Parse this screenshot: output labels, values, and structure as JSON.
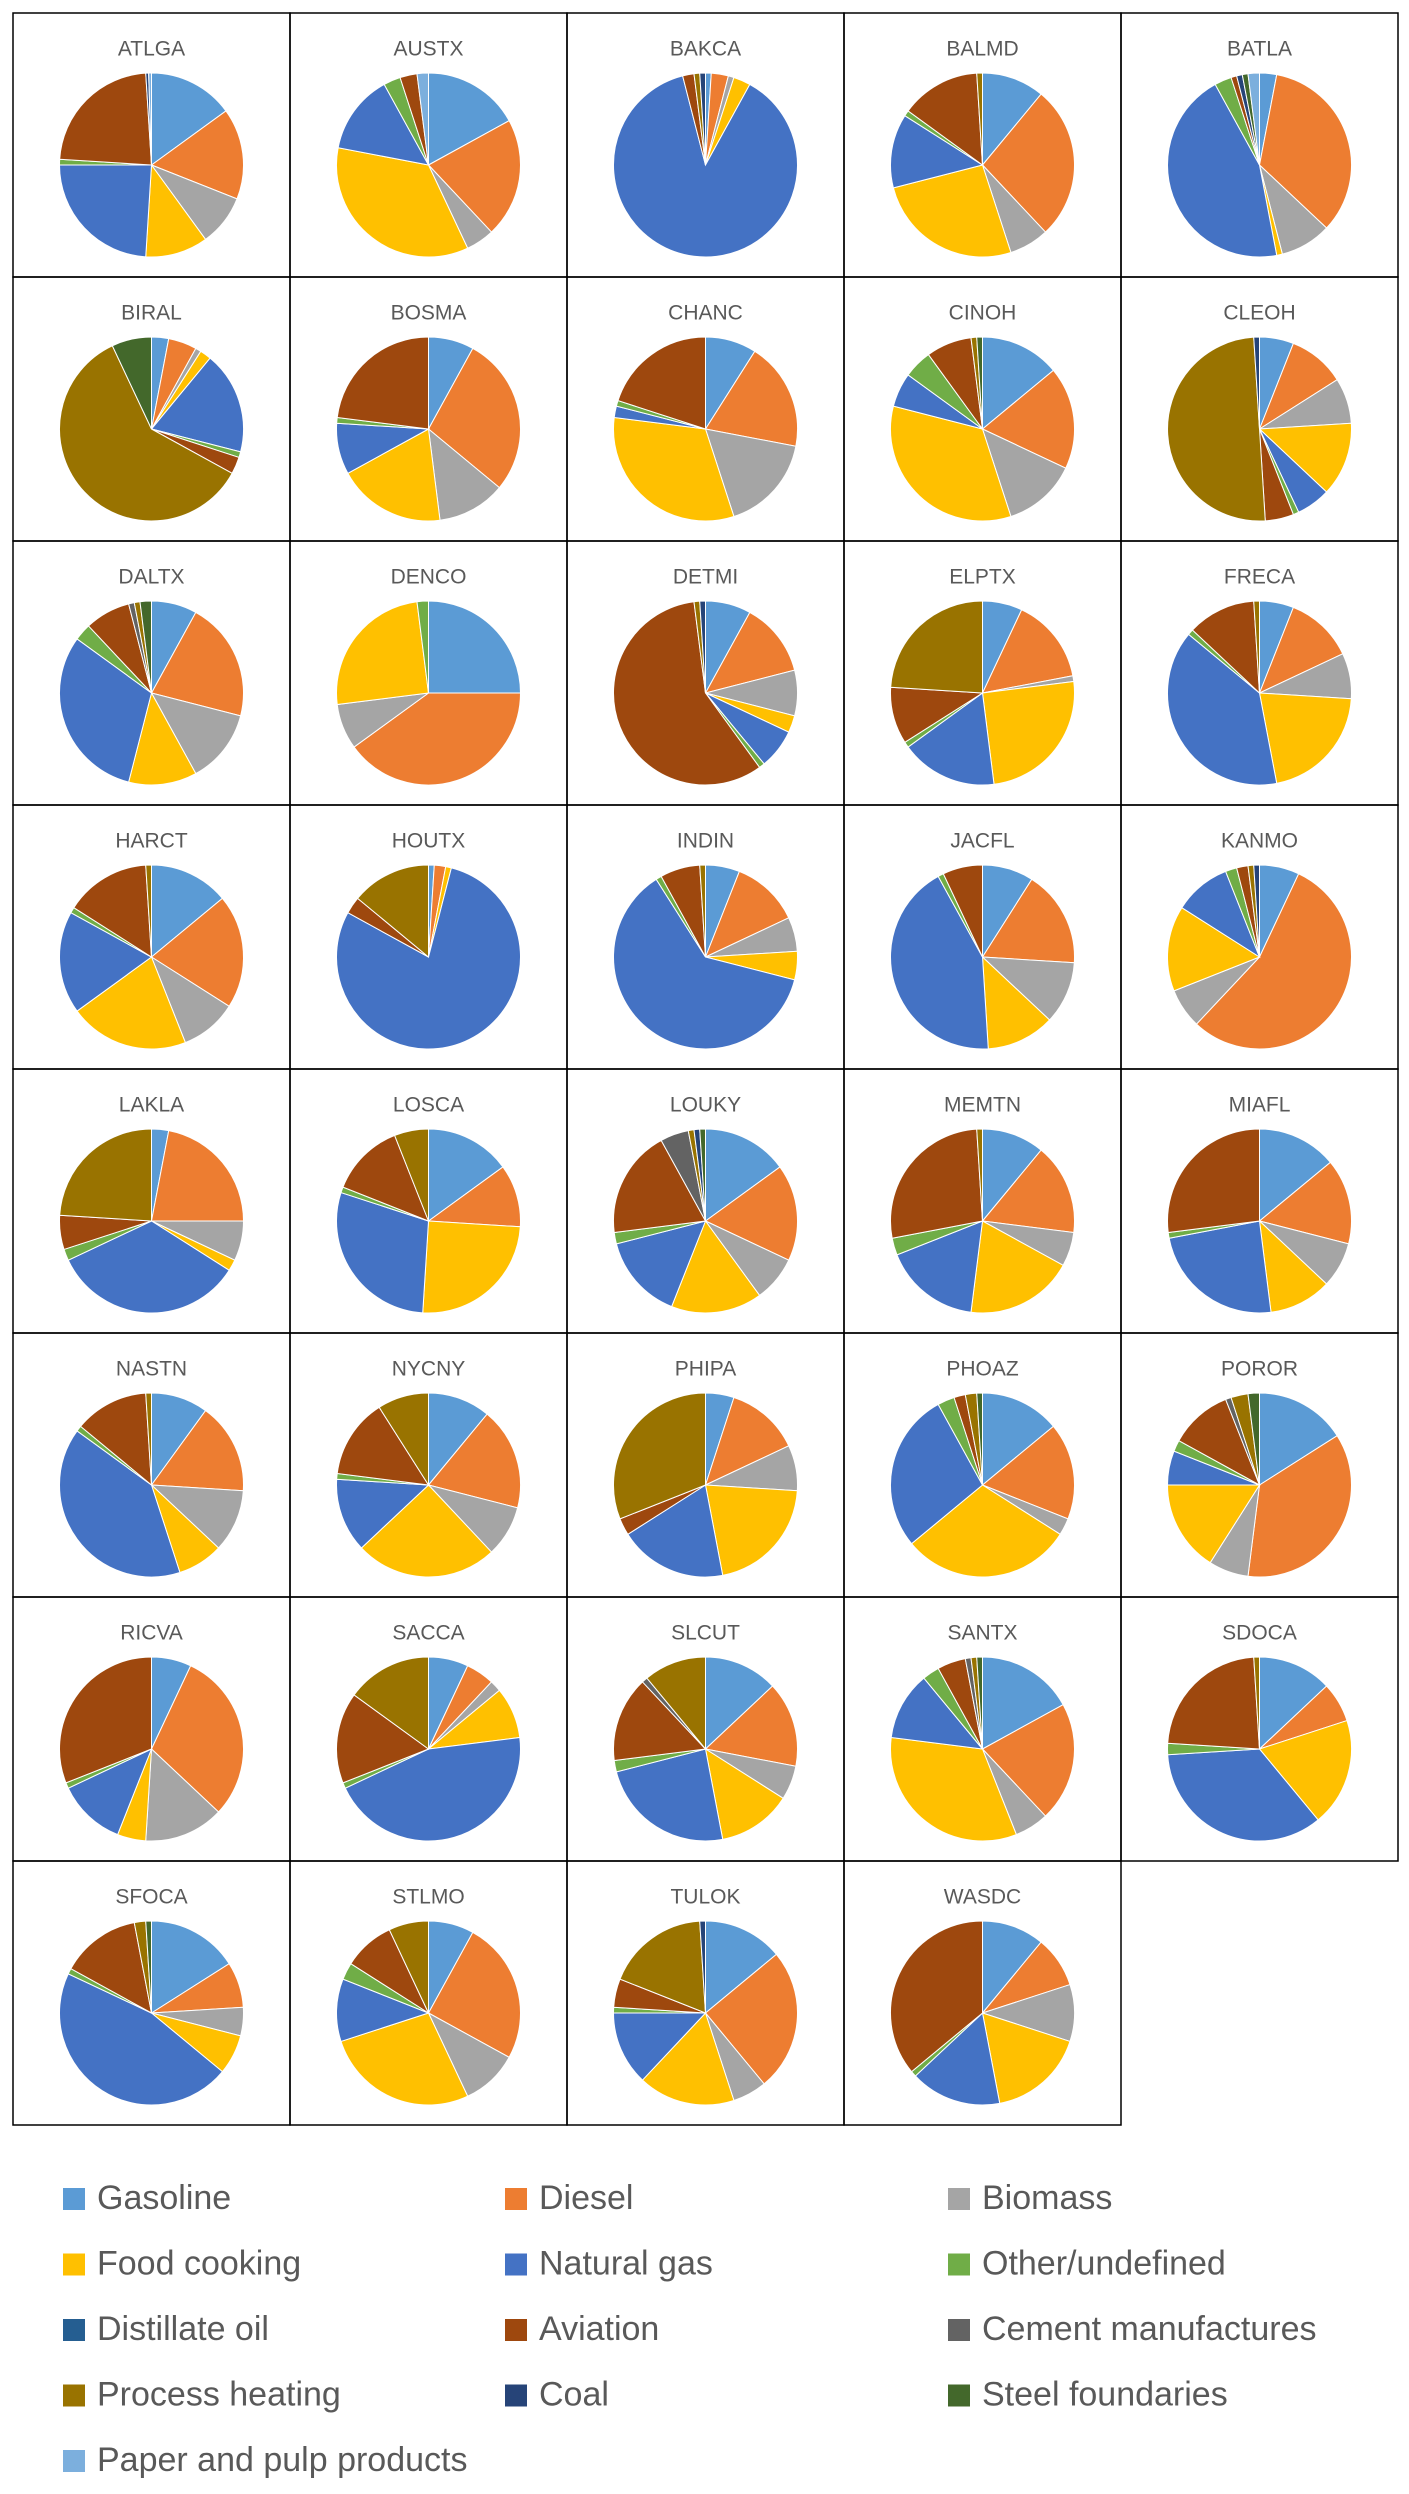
{
  "chart_data": {
    "type": "pie",
    "categories": [
      "Gasoline",
      "Diesel",
      "Biomass",
      "Food cooking",
      "Natural gas",
      "Other/undefined",
      "Distillate oil",
      "Aviation",
      "Cement manufactures",
      "Process heating",
      "Coal",
      "Steel foundaries",
      "Paper and pulp products"
    ],
    "colors": [
      "#5B9BD5",
      "#ED7D31",
      "#A5A5A5",
      "#FFC000",
      "#4472C4",
      "#70AD47",
      "#255E91",
      "#9E480E",
      "#636363",
      "#997300",
      "#264478",
      "#43682B",
      "#7CAFDD"
    ],
    "legend": "bottom",
    "panels": [
      {
        "title": "ATLGA",
        "values": [
          15,
          16,
          9,
          11,
          24,
          1,
          0,
          23,
          0,
          0,
          0.5,
          0,
          0.5
        ]
      },
      {
        "title": "AUSTX",
        "values": [
          17,
          21,
          5,
          35,
          14,
          3,
          0,
          3,
          0,
          0,
          0,
          0,
          2
        ]
      },
      {
        "title": "BAKCA",
        "values": [
          1,
          3,
          1,
          3,
          88,
          0,
          0,
          2,
          0,
          1,
          1,
          0,
          0
        ]
      },
      {
        "title": "BALMD",
        "values": [
          11,
          27,
          7,
          26,
          13,
          1,
          0,
          14,
          0,
          1,
          0,
          0,
          0
        ]
      },
      {
        "title": "BATLA",
        "values": [
          3,
          34,
          9,
          1,
          45,
          3,
          0,
          1,
          0,
          0,
          1,
          1,
          2
        ]
      },
      {
        "title": "BIRAL",
        "values": [
          3,
          5,
          1,
          2,
          18,
          1,
          0,
          3,
          0,
          60,
          0,
          7,
          0
        ]
      },
      {
        "title": "BOSMA",
        "values": [
          8,
          28,
          12,
          19,
          9,
          1,
          0,
          23,
          0,
          0,
          0,
          0,
          0
        ]
      },
      {
        "title": "CHANC",
        "values": [
          9,
          19,
          17,
          32,
          2,
          1,
          0,
          20,
          0,
          0,
          0,
          0,
          0
        ]
      },
      {
        "title": "CINOH",
        "values": [
          14,
          18,
          13,
          34,
          6,
          5,
          0,
          8,
          0,
          1,
          0,
          1,
          0
        ]
      },
      {
        "title": "CLEOH",
        "values": [
          6,
          10,
          8,
          13,
          6,
          1,
          0,
          5,
          0,
          50,
          1,
          0,
          0
        ]
      },
      {
        "title": "DALTX",
        "values": [
          8,
          21,
          13,
          12,
          31,
          3,
          0,
          8,
          1,
          1,
          0,
          2,
          0
        ]
      },
      {
        "title": "DENCO",
        "values": [
          25,
          40,
          8,
          25,
          0,
          2,
          0,
          0,
          0,
          0,
          0,
          0,
          0
        ]
      },
      {
        "title": "DETMI",
        "values": [
          8,
          13,
          8,
          3,
          7,
          1,
          0,
          58,
          0,
          1,
          1,
          0,
          0
        ]
      },
      {
        "title": "ELPTX",
        "values": [
          7,
          15,
          1,
          25,
          17,
          1,
          0,
          10,
          0,
          24,
          0,
          0,
          0
        ]
      },
      {
        "title": "FRECA",
        "values": [
          6,
          12,
          8,
          21,
          39,
          1,
          0,
          12,
          0,
          1,
          0,
          0,
          0
        ]
      },
      {
        "title": "HARCT",
        "values": [
          14,
          20,
          10,
          21,
          18,
          1,
          0,
          15,
          0,
          1,
          0,
          0,
          0
        ]
      },
      {
        "title": "HOUTX",
        "values": [
          1,
          2,
          0,
          1,
          79,
          0,
          0,
          3,
          0,
          14,
          0,
          0,
          0
        ]
      },
      {
        "title": "INDIN",
        "values": [
          6,
          12,
          6,
          5,
          62,
          1,
          0,
          7,
          0,
          1,
          0,
          0,
          0
        ]
      },
      {
        "title": "JACFL",
        "values": [
          9,
          17,
          11,
          12,
          43,
          1,
          0,
          7,
          0,
          0,
          0,
          0,
          0
        ]
      },
      {
        "title": "KANMO",
        "values": [
          7,
          55,
          7,
          15,
          10,
          2,
          0,
          2,
          0,
          1,
          1,
          0,
          0
        ]
      },
      {
        "title": "LAKLA",
        "values": [
          3,
          22,
          7,
          2,
          34,
          2,
          0,
          6,
          0,
          24,
          0,
          0,
          0
        ]
      },
      {
        "title": "LOSCA",
        "values": [
          15,
          11,
          0,
          25,
          29,
          1,
          0,
          13,
          0,
          6,
          0,
          0,
          0
        ]
      },
      {
        "title": "LOUKY",
        "values": [
          15,
          17,
          8,
          16,
          15,
          2,
          0,
          19,
          5,
          1,
          1,
          1,
          0
        ]
      },
      {
        "title": "MEMTN",
        "values": [
          11,
          16,
          6,
          19,
          17,
          3,
          0,
          27,
          0,
          1,
          0,
          0,
          0
        ]
      },
      {
        "title": "MIAFL",
        "values": [
          14,
          15,
          8,
          11,
          24,
          1,
          0,
          27,
          0,
          0,
          0,
          0,
          0
        ]
      },
      {
        "title": "NASTN",
        "values": [
          10,
          16,
          11,
          8,
          40,
          1,
          0,
          13,
          0,
          1,
          0,
          0,
          0
        ]
      },
      {
        "title": "NYCNY",
        "values": [
          11,
          18,
          9,
          25,
          13,
          1,
          0,
          14,
          0,
          9,
          0,
          0,
          0
        ]
      },
      {
        "title": "PHIPA",
        "values": [
          5,
          13,
          8,
          21,
          19,
          0,
          0,
          3,
          0,
          31,
          0,
          0,
          0
        ]
      },
      {
        "title": "PHOAZ",
        "values": [
          14,
          17,
          3,
          30,
          28,
          3,
          0,
          2,
          0,
          2,
          0,
          1,
          0
        ]
      },
      {
        "title": "POROR",
        "values": [
          16,
          36,
          7,
          16,
          6,
          2,
          0,
          11,
          1,
          3,
          0,
          2,
          0
        ]
      },
      {
        "title": "RICVA",
        "values": [
          7,
          30,
          14,
          5,
          12,
          1,
          0,
          31,
          0,
          0,
          0,
          0,
          0
        ]
      },
      {
        "title": "SACCA",
        "values": [
          7,
          5,
          2,
          9,
          45,
          1,
          0,
          16,
          0,
          15,
          0,
          0,
          0
        ]
      },
      {
        "title": "SLCUT",
        "values": [
          13,
          15,
          6,
          13,
          24,
          2,
          0,
          15,
          1,
          11,
          0,
          0,
          0
        ]
      },
      {
        "title": "SANTX",
        "values": [
          17,
          21,
          6,
          33,
          12,
          3,
          0,
          5,
          1,
          1,
          0,
          1,
          0
        ]
      },
      {
        "title": "SDOCA",
        "values": [
          13,
          7,
          0,
          19,
          35,
          2,
          0,
          23,
          0,
          1,
          0,
          0,
          0
        ]
      },
      {
        "title": "SFOCA",
        "values": [
          16,
          8,
          5,
          7,
          46,
          1,
          0,
          14,
          0,
          2,
          0,
          1,
          0
        ]
      },
      {
        "title": "STLMO",
        "values": [
          8,
          25,
          10,
          27,
          11,
          3,
          0,
          9,
          0,
          7,
          0,
          0,
          0
        ]
      },
      {
        "title": "TULOK",
        "values": [
          14,
          25,
          6,
          17,
          13,
          1,
          0,
          5,
          0,
          18,
          1,
          0,
          0
        ]
      },
      {
        "title": "WASDC",
        "values": [
          11,
          9,
          10,
          17,
          16,
          1,
          0,
          36,
          0,
          0,
          0,
          0,
          0
        ]
      }
    ]
  }
}
